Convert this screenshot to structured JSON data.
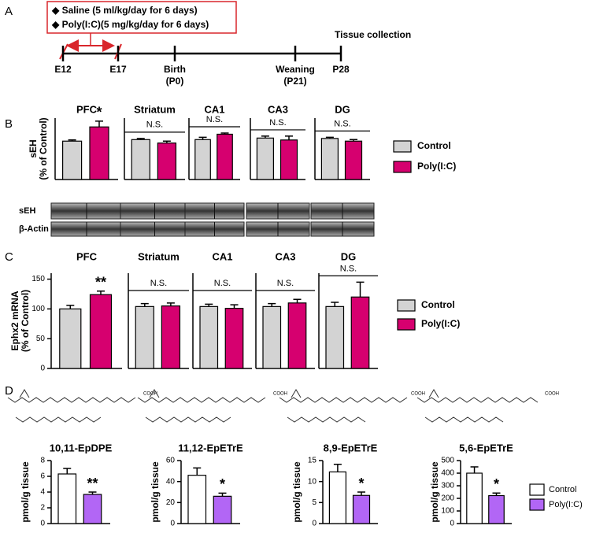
{
  "panel_labels": [
    "A",
    "B",
    "C",
    "D"
  ],
  "timeline": {
    "treatments": [
      "◆ Saline (5 ml/kg/day for 6 days)",
      "◆ Poly(I:C)(5 mg/kg/day for 6 days)"
    ],
    "points": [
      {
        "label": "E12"
      },
      {
        "label": "E17"
      },
      {
        "label": "Birth",
        "sub": "(P0)"
      },
      {
        "label": "Weaning",
        "sub": "(P21)"
      },
      {
        "label": "P28"
      }
    ],
    "end_label": "Tissue collection"
  },
  "blot_labels": [
    "sEH",
    "β-Actin"
  ],
  "structure_labels": [
    "COOH",
    "COOH",
    "COOH",
    "COOH"
  ],
  "chart_data": [
    {
      "type": "bar",
      "title": "PFC",
      "ylabel": [
        "sEH",
        "(% of Control)"
      ],
      "ylim": [
        0,
        160
      ],
      "annotation": "*",
      "series": [
        {
          "name": "Control",
          "color": "#d3d3d3",
          "values": [
            100
          ],
          "errors": [
            3
          ]
        },
        {
          "name": "Poly(I:C)",
          "color": "#d6006f",
          "values": [
            137
          ],
          "errors": [
            15
          ]
        }
      ]
    },
    {
      "type": "bar",
      "title": "Striatum",
      "ylim": [
        0,
        160
      ],
      "annotation": "N.S.",
      "series": [
        {
          "name": "Control",
          "color": "#d3d3d3",
          "values": [
            104
          ],
          "errors": [
            3
          ]
        },
        {
          "name": "Poly(I:C)",
          "color": "#d6006f",
          "values": [
            95
          ],
          "errors": [
            5
          ]
        }
      ]
    },
    {
      "type": "bar",
      "title": "CA1",
      "ylim": [
        0,
        160
      ],
      "annotation": "N.S.",
      "series": [
        {
          "name": "Control",
          "color": "#d3d3d3",
          "values": [
            104
          ],
          "errors": [
            6
          ]
        },
        {
          "name": "Poly(I:C)",
          "color": "#d6006f",
          "values": [
            118
          ],
          "errors": [
            3
          ]
        }
      ]
    },
    {
      "type": "bar",
      "title": "CA3",
      "ylim": [
        0,
        160
      ],
      "annotation": "N.S.",
      "series": [
        {
          "name": "Control",
          "color": "#d3d3d3",
          "values": [
            108
          ],
          "errors": [
            5
          ]
        },
        {
          "name": "Poly(I:C)",
          "color": "#d6006f",
          "values": [
            103
          ],
          "errors": [
            10
          ]
        }
      ]
    },
    {
      "type": "bar",
      "title": "DG",
      "ylim": [
        0,
        160
      ],
      "annotation": "N.S.",
      "series": [
        {
          "name": "Control",
          "color": "#d3d3d3",
          "values": [
            107
          ],
          "errors": [
            3
          ]
        },
        {
          "name": "Poly(I:C)",
          "color": "#d6006f",
          "values": [
            100
          ],
          "errors": [
            4
          ]
        }
      ]
    },
    {
      "type": "bar",
      "title": "PFC",
      "ylabel": [
        "Ephx2 mRNA",
        "(% of Control)"
      ],
      "ylim": [
        0,
        160
      ],
      "yticks": [
        0,
        50,
        100,
        150
      ],
      "annotation": "**",
      "series": [
        {
          "name": "Control",
          "color": "#d3d3d3",
          "values": [
            100
          ],
          "errors": [
            6
          ]
        },
        {
          "name": "Poly(I:C)",
          "color": "#d6006f",
          "values": [
            124
          ],
          "errors": [
            6
          ]
        }
      ]
    },
    {
      "type": "bar",
      "title": "Striatum",
      "ylim": [
        0,
        160
      ],
      "annotation": "N.S.",
      "series": [
        {
          "name": "Control",
          "color": "#d3d3d3",
          "values": [
            104
          ],
          "errors": [
            5
          ]
        },
        {
          "name": "Poly(I:C)",
          "color": "#d6006f",
          "values": [
            105
          ],
          "errors": [
            5
          ]
        }
      ]
    },
    {
      "type": "bar",
      "title": "CA1",
      "ylim": [
        0,
        160
      ],
      "annotation": "N.S.",
      "series": [
        {
          "name": "Control",
          "color": "#d3d3d3",
          "values": [
            104
          ],
          "errors": [
            4
          ]
        },
        {
          "name": "Poly(I:C)",
          "color": "#d6006f",
          "values": [
            101
          ],
          "errors": [
            6
          ]
        }
      ]
    },
    {
      "type": "bar",
      "title": "CA3",
      "ylim": [
        0,
        160
      ],
      "annotation": "N.S.",
      "series": [
        {
          "name": "Control",
          "color": "#d3d3d3",
          "values": [
            104
          ],
          "errors": [
            5
          ]
        },
        {
          "name": "Poly(I:C)",
          "color": "#d6006f",
          "values": [
            110
          ],
          "errors": [
            6
          ]
        }
      ]
    },
    {
      "type": "bar",
      "title": "DG",
      "ylim": [
        0,
        160
      ],
      "annotation": "N.S.",
      "series": [
        {
          "name": "Control",
          "color": "#d3d3d3",
          "values": [
            104
          ],
          "errors": [
            7
          ]
        },
        {
          "name": "Poly(I:C)",
          "color": "#d6006f",
          "values": [
            120
          ],
          "errors": [
            25
          ]
        }
      ]
    },
    {
      "type": "bar",
      "title": "10,11-EpDPE",
      "ylabel": [
        "pmol/g tissue"
      ],
      "ylim": [
        0,
        8
      ],
      "yticks": [
        0,
        2,
        4,
        6,
        8
      ],
      "annotation": "**",
      "series": [
        {
          "name": "Control",
          "color": "#ffffff",
          "values": [
            6.3
          ],
          "errors": [
            0.7
          ]
        },
        {
          "name": "Poly(I:C)",
          "color": "#b266f5",
          "values": [
            3.7
          ],
          "errors": [
            0.3
          ]
        }
      ]
    },
    {
      "type": "bar",
      "title": "11,12-EpETrE",
      "ylabel": [
        "pmol/g tissue"
      ],
      "ylim": [
        0,
        60
      ],
      "yticks": [
        0,
        20,
        40,
        60
      ],
      "annotation": "*",
      "series": [
        {
          "name": "Control",
          "color": "#ffffff",
          "values": [
            46
          ],
          "errors": [
            7
          ]
        },
        {
          "name": "Poly(I:C)",
          "color": "#b266f5",
          "values": [
            26
          ],
          "errors": [
            3
          ]
        }
      ]
    },
    {
      "type": "bar",
      "title": "8,9-EpETrE",
      "ylabel": [
        "pmol/g tissue"
      ],
      "ylim": [
        0,
        15
      ],
      "yticks": [
        0,
        5,
        10,
        15
      ],
      "annotation": "*",
      "series": [
        {
          "name": "Control",
          "color": "#ffffff",
          "values": [
            12.3
          ],
          "errors": [
            1.8
          ]
        },
        {
          "name": "Poly(I:C)",
          "color": "#b266f5",
          "values": [
            6.7
          ],
          "errors": [
            0.8
          ]
        }
      ]
    },
    {
      "type": "bar",
      "title": "5,6-EpETrE",
      "ylabel": [
        "pmol/g tissue"
      ],
      "ylim": [
        0,
        500
      ],
      "yticks": [
        0,
        100,
        200,
        300,
        400,
        500
      ],
      "annotation": "*",
      "series": [
        {
          "name": "Control",
          "color": "#ffffff",
          "values": [
            400
          ],
          "errors": [
            50
          ]
        },
        {
          "name": "Poly(I:C)",
          "color": "#b266f5",
          "values": [
            222
          ],
          "errors": [
            20
          ]
        }
      ]
    }
  ]
}
